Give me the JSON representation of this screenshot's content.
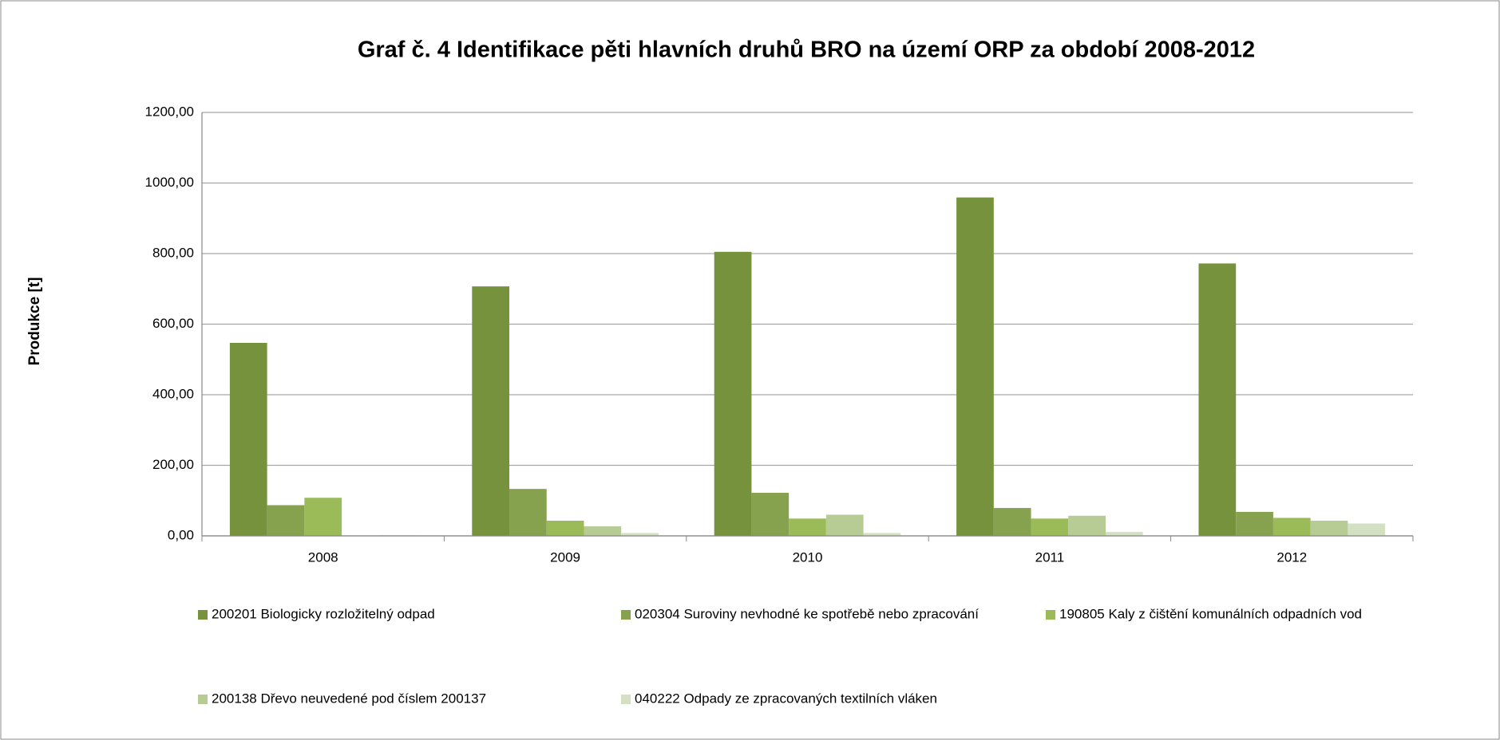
{
  "chart_data": {
    "type": "bar",
    "title": "Graf č. 4 Identifikace pěti hlavních druhů BRO na území ORP za období 2008-2012",
    "y_label": "Produkce [t]",
    "categories": [
      "2008",
      "2009",
      "2010",
      "2011",
      "2012"
    ],
    "series": [
      {
        "name": "200201 Biologicky rozložitelný odpad",
        "color": "#76923c",
        "values": [
          547,
          707,
          805,
          959,
          772
        ]
      },
      {
        "name": "020304 Suroviny nevhodné ke spotřebě nebo zpracování",
        "color": "#87a24e",
        "values": [
          87,
          133,
          122,
          79,
          68
        ]
      },
      {
        "name": "190805 Kaly z čištění komunálních odpadních vod",
        "color": "#9bbb59",
        "values": [
          108,
          43,
          49,
          49,
          51
        ]
      },
      {
        "name": "200138 Dřevo neuvedené pod číslem 200137",
        "color": "#b6cc94",
        "values": [
          0,
          27,
          60,
          57,
          43
        ]
      },
      {
        "name": "040222 Odpady ze zpracovaných textilních vláken",
        "color": "#d3e0c2",
        "values": [
          2,
          8,
          8,
          11,
          35
        ]
      }
    ],
    "ylim": [
      0,
      1200
    ],
    "yticks": [
      {
        "value": 0,
        "label": "0,00"
      },
      {
        "value": 200,
        "label": "200,00"
      },
      {
        "value": 400,
        "label": "400,00"
      },
      {
        "value": 600,
        "label": "600,00"
      },
      {
        "value": 800,
        "label": "800,00"
      },
      {
        "value": 1000,
        "label": "1000,00"
      },
      {
        "value": 1200,
        "label": "1200,00"
      }
    ],
    "grid": true,
    "legend": "bottom"
  }
}
